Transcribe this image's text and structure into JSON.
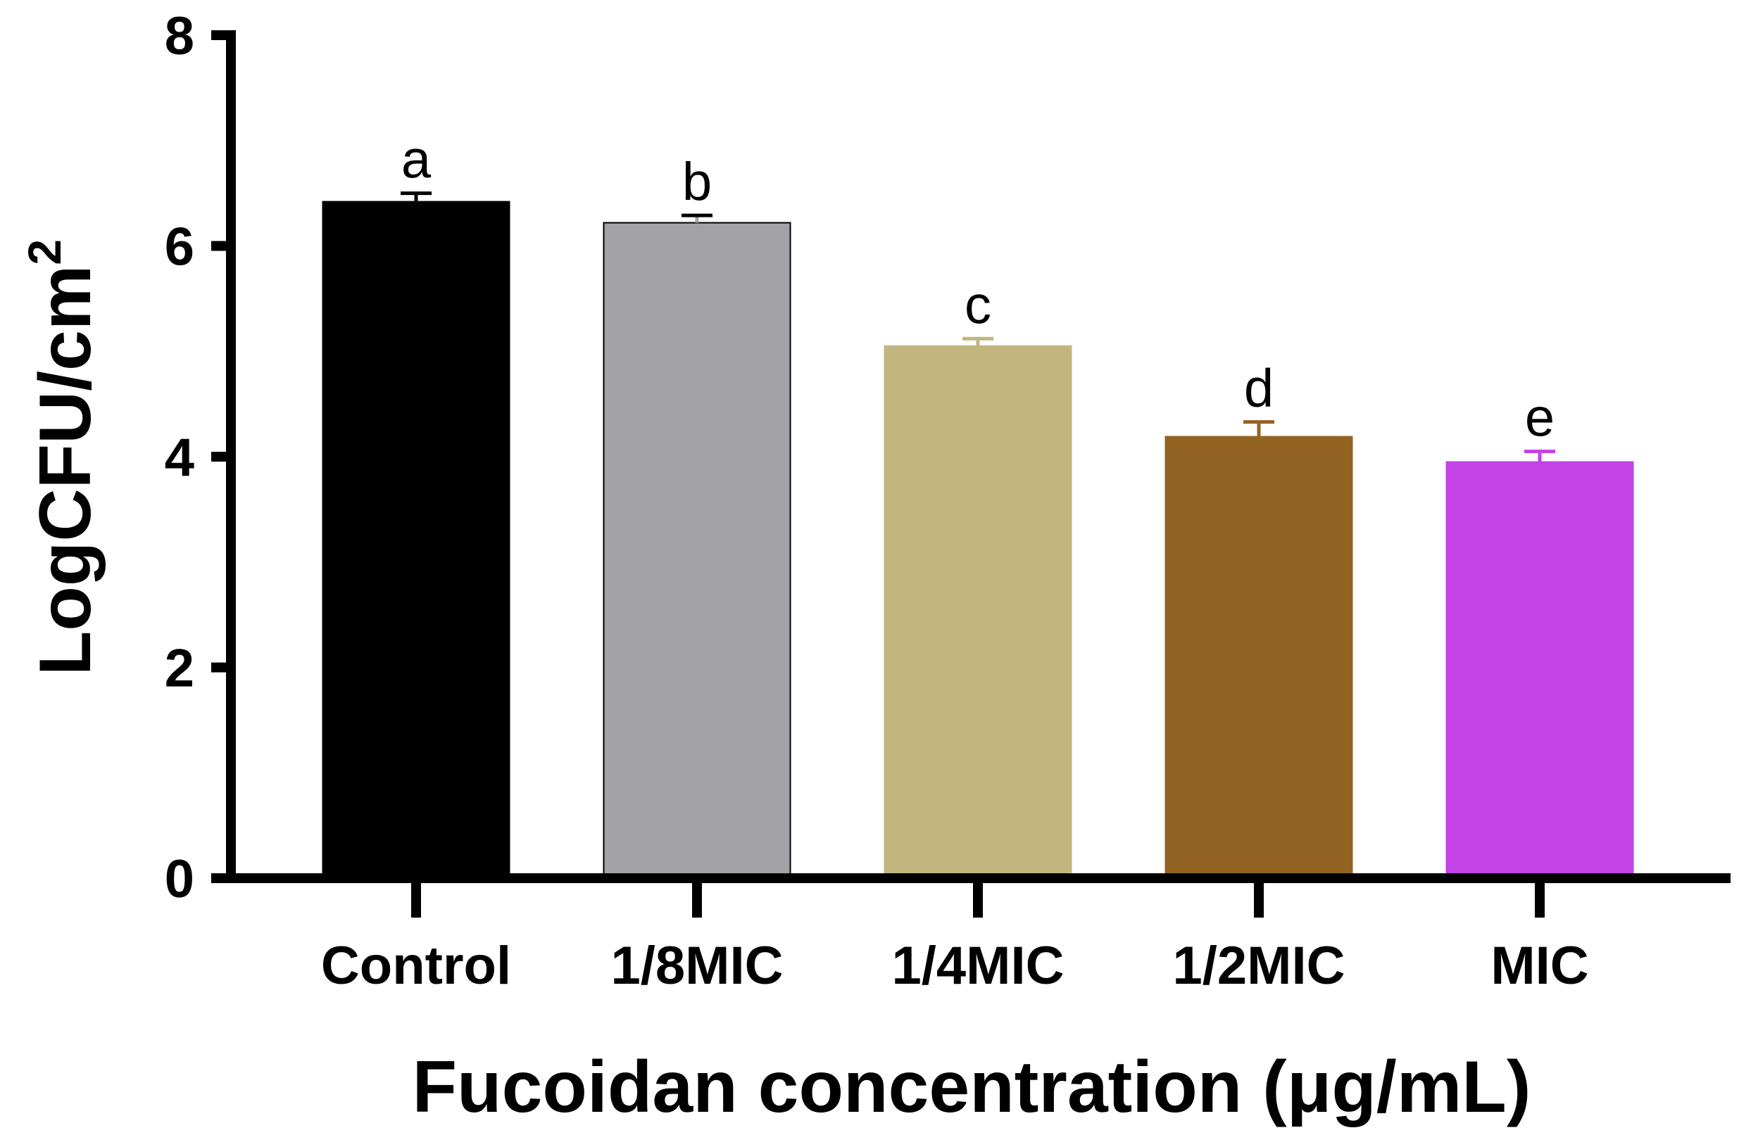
{
  "chart_data": {
    "type": "bar",
    "categories": [
      "Control",
      "1/8MIC",
      "1/4MIC",
      "1/2MIC",
      "MIC"
    ],
    "values": [
      6.42,
      6.22,
      5.05,
      4.19,
      3.95
    ],
    "errors": [
      0.08,
      0.07,
      0.07,
      0.14,
      0.1
    ],
    "significance_labels": [
      "a",
      "b",
      "c",
      "d",
      "e"
    ],
    "colors": [
      "#000000",
      "#a3a2a6",
      "#c2b67e",
      "#936321",
      "#c243e6"
    ],
    "xlabel": "Fucoidan concentration (μg/mL)",
    "ylabel": "LogCFU/cm",
    "ylabel_superscript": "2",
    "ylim": [
      0,
      8
    ],
    "yticks": [
      "0",
      "2",
      "4",
      "6",
      "8"
    ],
    "grid": false
  }
}
